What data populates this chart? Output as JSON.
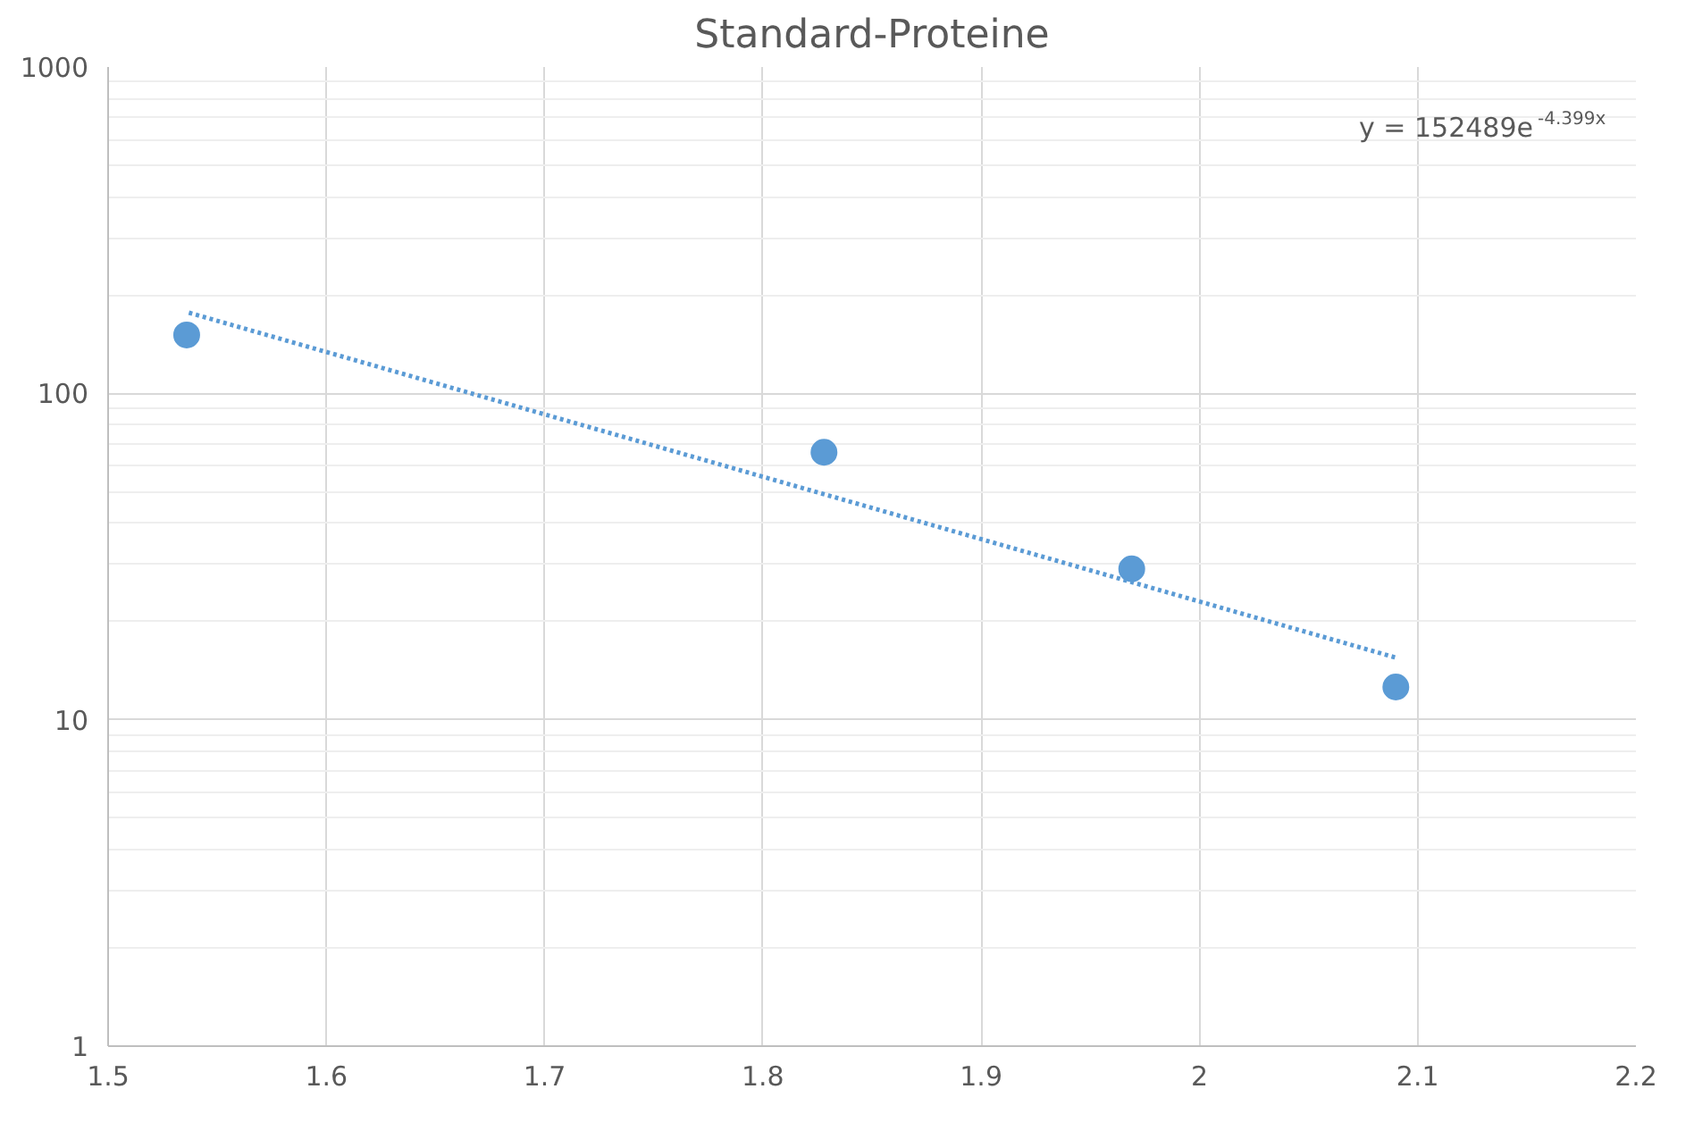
{
  "chart_data": {
    "type": "scatter",
    "title": "Standard-Proteine",
    "x": [
      1.536,
      1.828,
      1.969,
      2.09
    ],
    "series": [
      {
        "color": "#5b9bd5",
        "marker": "circle",
        "values": [
          151,
          66,
          29,
          12.6
        ]
      },
      {
        "type": "line",
        "color": "#5b9bd5",
        "marker": "none",
        "line_style": "dotted",
        "x": [
          1.537,
          2.09
        ],
        "values": [
          176.7,
          15.5
        ]
      }
    ],
    "xlim": [
      1.5,
      2.2
    ],
    "xticks": [
      1.5,
      1.6,
      1.7,
      1.8,
      1.9,
      2,
      2.1,
      2.2
    ],
    "ylim": [
      1,
      1000
    ],
    "yticks": [
      1,
      10,
      100,
      1000
    ],
    "log": "y",
    "grid": true,
    "annotations": [
      "y = 152489e$^{-4.399x}$"
    ]
  }
}
